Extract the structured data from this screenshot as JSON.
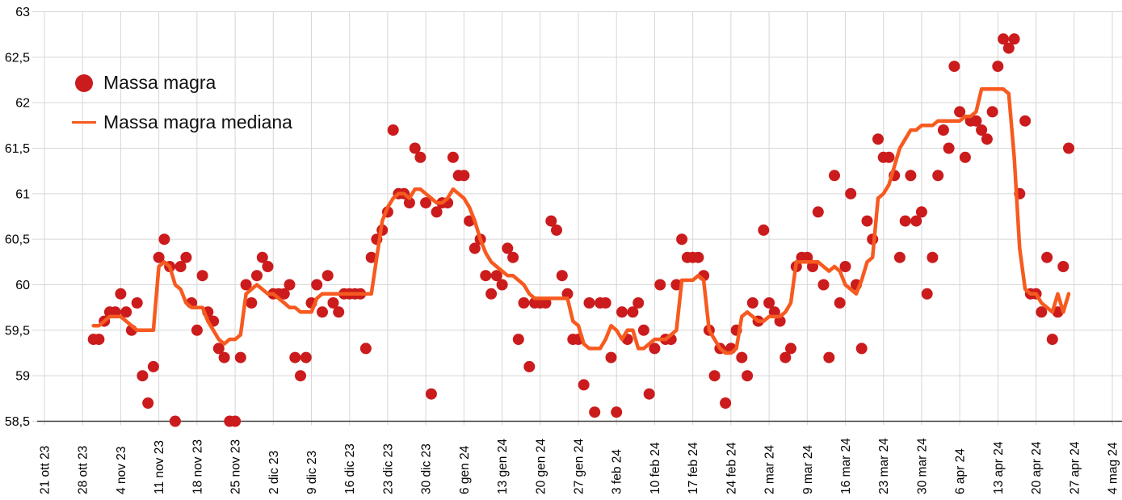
{
  "chart_data": {
    "type": "scatter",
    "title": "",
    "xlabel": "",
    "ylabel": "",
    "ylim": [
      58.5,
      63
    ],
    "y_tick_step": 0.5,
    "y_tick_labels": [
      "63",
      "62,5",
      "62",
      "61,5",
      "61",
      "60,5",
      "60",
      "59,5",
      "59",
      "58,5"
    ],
    "x_tick_labels": [
      "21 ott 23",
      "28 ott 23",
      "4 nov 23",
      "11 nov 23",
      "18 nov 23",
      "25 nov 23",
      "2 dic 23",
      "9 dic 23",
      "16 dic 23",
      "23 dic 23",
      "30 dic 23",
      "6 gen 24",
      "13 gen 24",
      "20 gen 24",
      "27 gen 24",
      "3 feb 24",
      "10 feb 24",
      "17 feb 24",
      "24 feb 24",
      "2 mar 24",
      "9 mar 24",
      "16 mar 24",
      "23 mar 24",
      "30 mar 24",
      "6 apr 24",
      "13 apr 24",
      "20 apr 24",
      "27 apr 24",
      "4 mag 24"
    ],
    "x_axis_start_label": "21 ott 23",
    "data_start_date": "2023-10-30",
    "data_start_offset_days": 9,
    "grid": true,
    "legend_position": "top-left",
    "colors": {
      "points": "#cb1b1c",
      "median_line": "#f75a1f",
      "grid": "#d7d7d7",
      "axis_line": "#3c3c3c",
      "text": "#000000",
      "background": "#ffffff"
    },
    "series": [
      {
        "name": "Massa magra",
        "type": "scatter",
        "marker": "circle",
        "color": "#cb1b1c",
        "values": [
          59.4,
          59.4,
          59.6,
          59.7,
          59.7,
          59.9,
          59.7,
          59.5,
          59.8,
          59.0,
          58.7,
          59.1,
          60.3,
          60.5,
          60.2,
          58.5,
          60.2,
          60.3,
          59.8,
          59.5,
          60.1,
          59.7,
          59.6,
          59.3,
          59.2,
          58.5,
          58.5,
          59.2,
          60.0,
          59.8,
          60.1,
          60.3,
          60.2,
          59.9,
          59.9,
          59.9,
          60.0,
          59.2,
          59.0,
          59.2,
          59.8,
          60.0,
          59.7,
          60.1,
          59.8,
          59.7,
          59.9,
          59.9,
          59.9,
          59.9,
          59.3,
          60.3,
          60.5,
          60.6,
          60.8,
          61.7,
          61.0,
          61.0,
          60.9,
          61.5,
          61.4,
          60.9,
          58.8,
          60.8,
          60.9,
          60.9,
          61.4,
          61.2,
          61.2,
          60.7,
          60.4,
          60.5,
          60.1,
          59.9,
          60.1,
          60.0,
          60.4,
          60.3,
          59.4,
          59.8,
          59.1,
          59.8,
          59.8,
          59.8,
          60.7,
          60.6,
          60.1,
          59.9,
          59.4,
          59.4,
          58.9,
          59.8,
          58.6,
          59.8,
          59.8,
          59.2,
          58.6,
          59.7,
          59.4,
          59.7,
          59.8,
          59.5,
          58.8,
          59.3,
          60.0,
          59.4,
          59.4,
          60.0,
          60.5,
          60.3,
          60.3,
          60.3,
          60.1,
          59.5,
          59.0,
          59.3,
          58.7,
          59.3,
          59.5,
          59.2,
          59.0,
          59.8,
          59.6,
          60.6,
          59.8,
          59.7,
          59.6,
          59.2,
          59.3,
          60.2,
          60.3,
          60.3,
          60.2,
          60.8,
          60.0,
          59.2,
          61.2,
          59.8,
          60.2,
          61.0,
          60.0,
          59.3,
          60.7,
          60.5,
          61.6,
          61.4,
          61.4,
          61.2,
          60.3,
          60.7,
          61.2,
          60.7,
          60.8,
          59.9,
          60.3,
          61.2,
          61.7,
          61.5,
          62.4,
          61.9,
          61.4,
          61.8,
          61.8,
          61.7,
          61.6,
          61.9,
          62.4,
          62.7,
          62.6,
          62.7,
          61.0,
          61.8,
          59.9,
          59.9,
          59.7,
          60.3,
          59.4,
          59.7,
          60.2,
          61.5
        ]
      },
      {
        "name": "Massa magra mediana",
        "type": "line",
        "marker": "none",
        "color": "#f75a1f",
        "values": [
          59.55,
          59.55,
          59.6,
          59.65,
          59.65,
          59.65,
          59.6,
          59.55,
          59.5,
          59.5,
          59.5,
          59.5,
          60.2,
          60.25,
          60.2,
          60.0,
          59.95,
          59.8,
          59.75,
          59.75,
          59.75,
          59.6,
          59.5,
          59.4,
          59.35,
          59.4,
          59.4,
          59.45,
          59.9,
          59.95,
          60.0,
          59.95,
          59.9,
          59.9,
          59.85,
          59.8,
          59.75,
          59.75,
          59.7,
          59.7,
          59.7,
          59.85,
          59.9,
          59.9,
          59.9,
          59.9,
          59.9,
          59.9,
          59.9,
          59.9,
          59.9,
          59.9,
          60.3,
          60.7,
          60.85,
          60.95,
          61.0,
          61.0,
          60.95,
          61.05,
          61.05,
          61.0,
          60.95,
          60.9,
          60.9,
          60.95,
          61.05,
          61.0,
          60.95,
          60.85,
          60.7,
          60.5,
          60.35,
          60.25,
          60.2,
          60.15,
          60.1,
          60.1,
          60.05,
          60.0,
          59.9,
          59.85,
          59.85,
          59.85,
          59.85,
          59.85,
          59.85,
          59.85,
          59.6,
          59.55,
          59.35,
          59.3,
          59.3,
          59.3,
          59.4,
          59.55,
          59.5,
          59.4,
          59.5,
          59.5,
          59.3,
          59.3,
          59.35,
          59.4,
          59.4,
          59.4,
          59.45,
          59.5,
          60.05,
          60.05,
          60.05,
          60.1,
          60.05,
          59.5,
          59.4,
          59.3,
          59.25,
          59.25,
          59.3,
          59.65,
          59.7,
          59.65,
          59.6,
          59.6,
          59.65,
          59.65,
          59.65,
          59.7,
          59.8,
          60.25,
          60.25,
          60.25,
          60.25,
          60.25,
          60.2,
          60.15,
          60.2,
          60.15,
          60.0,
          59.95,
          59.9,
          60.05,
          60.25,
          60.3,
          60.95,
          61.0,
          61.1,
          61.3,
          61.5,
          61.6,
          61.7,
          61.7,
          61.75,
          61.75,
          61.75,
          61.8,
          61.8,
          61.8,
          61.8,
          61.8,
          61.85,
          61.85,
          61.9,
          62.15,
          62.15,
          62.15,
          62.15,
          62.15,
          62.1,
          61.4,
          60.4,
          59.95,
          59.9,
          59.9,
          59.8,
          59.75,
          59.7,
          59.9,
          59.7,
          59.9
        ]
      }
    ]
  },
  "legend": {
    "items": [
      {
        "label": "Massa magra",
        "marker": "dot-icon"
      },
      {
        "label": "Massa magra mediana",
        "marker": "line-icon"
      }
    ]
  }
}
